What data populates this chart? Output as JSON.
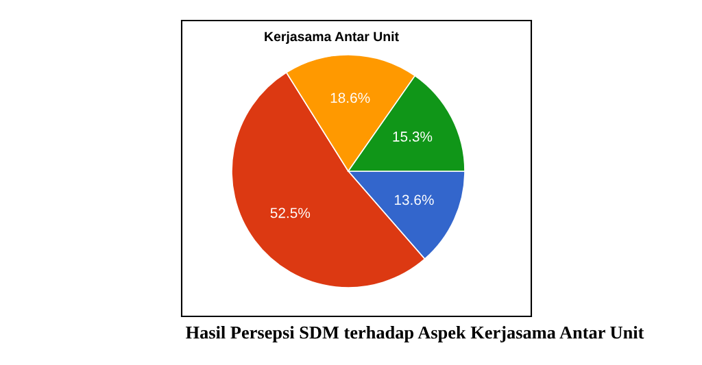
{
  "chart_data": {
    "type": "pie",
    "title": "Kerjasama Antar Unit",
    "categories": [
      null,
      null,
      null,
      null
    ],
    "values": [
      13.6,
      52.5,
      18.6,
      15.3
    ],
    "value_labels": [
      "13.6%",
      "52.5%",
      "18.6%",
      "15.3%"
    ],
    "colors": [
      "#3366cc",
      "#dc3912",
      "#ff9900",
      "#109618"
    ],
    "annotations": [
      "Hasil Persepsi SDM terhadap Aspek Kerjasama Antar Unit"
    ]
  }
}
